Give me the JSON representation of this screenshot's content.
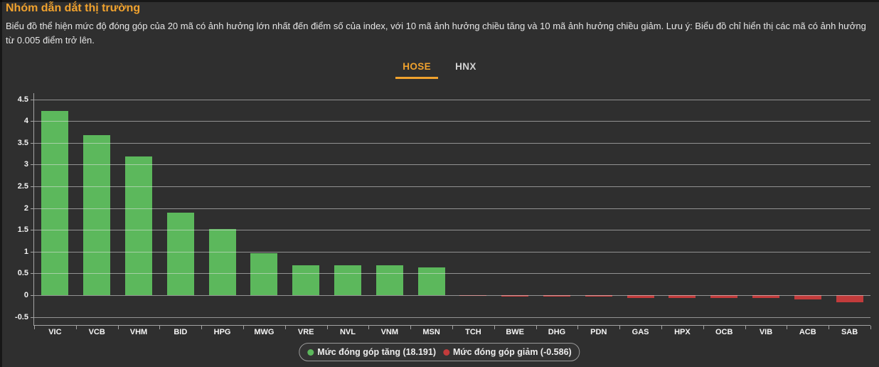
{
  "header": {
    "title": "Nhóm dẫn dắt thị trường",
    "description": "Biểu đồ thể hiện mức độ đóng góp của 20 mã có ảnh hưởng lớn nhất đến điểm số của index, với 10 mã ảnh hưởng chiều tăng và 10 mã ảnh hưởng chiều giảm. Lưu ý: Biểu đồ chỉ hiển thị các mã có ảnh hưởng từ 0.005 điểm trở lên."
  },
  "tabs": [
    {
      "label": "HOSE",
      "active": true
    },
    {
      "label": "HNX",
      "active": false
    }
  ],
  "chart_data": {
    "type": "bar",
    "categories": [
      "VIC",
      "VCB",
      "VHM",
      "BID",
      "HPG",
      "MWG",
      "VRE",
      "NVL",
      "VNM",
      "MSN",
      "TCH",
      "BWE",
      "DHG",
      "PDN",
      "GAS",
      "HPX",
      "OCB",
      "VIB",
      "ACB",
      "SAB"
    ],
    "values": [
      4.24,
      3.68,
      3.19,
      1.9,
      1.52,
      0.97,
      0.69,
      0.68,
      0.68,
      0.63,
      -0.02,
      -0.04,
      -0.04,
      -0.04,
      -0.06,
      -0.06,
      -0.06,
      -0.06,
      -0.09,
      -0.16
    ],
    "title": "",
    "xlabel": "",
    "ylabel": "",
    "ylim": [
      -0.5,
      4.5
    ],
    "ytick_step": 0.5,
    "grid": true,
    "legend_position": "bottom",
    "totals": {
      "up": 18.191,
      "down": -0.586
    }
  },
  "legend": {
    "up_label": "Mức đóng góp tăng (18.191)",
    "down_label": "Mức đóng góp giảm (-0.586)"
  },
  "colors": {
    "background": "#2f2f2f",
    "accent_orange": "#f0a22e",
    "positive_green": "#5cb85c",
    "negative_red": "#c23b3b",
    "grid_line": "#9a9a9a",
    "text": "#e8e8e8"
  }
}
